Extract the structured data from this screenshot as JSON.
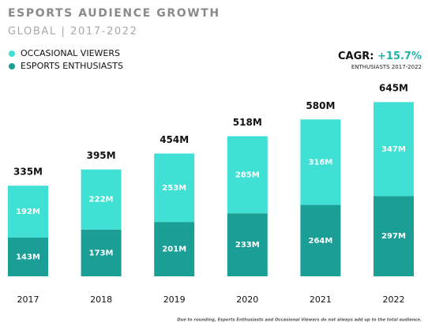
{
  "chart_data": {
    "type": "stacked-bar",
    "title": "ESPORTS AUDIENCE GROWTH",
    "subtitle": "GLOBAL | 2017-2022",
    "categories": [
      "2017",
      "2018",
      "2019",
      "2020",
      "2021",
      "2022"
    ],
    "series": [
      {
        "name": "ESPORTS ENTHUSIASTS",
        "color": "#1a9e96",
        "values": [
          143,
          173,
          201,
          233,
          264,
          297
        ],
        "value_labels": [
          "143M",
          "173M",
          "201M",
          "233M",
          "264M",
          "297M"
        ]
      },
      {
        "name": "OCCASIONAL VIEWERS",
        "color": "#40e0d4",
        "values": [
          192,
          222,
          253,
          285,
          316,
          347
        ],
        "value_labels": [
          "192M",
          "222M",
          "253M",
          "285M",
          "316M",
          "347M"
        ]
      }
    ],
    "totals": {
      "values": [
        335,
        395,
        454,
        518,
        580,
        645
      ],
      "value_labels": [
        "335M",
        "395M",
        "454M",
        "518M",
        "580M",
        "645M"
      ]
    },
    "cagr": {
      "label": "CAGR:",
      "value": "+15.7%",
      "note": "ENTHUSIASTS 2017-2022"
    },
    "footnote": "Due to rounding, Esports Enthusiasts and Occasional Viewers do not always add up to the total audience."
  }
}
